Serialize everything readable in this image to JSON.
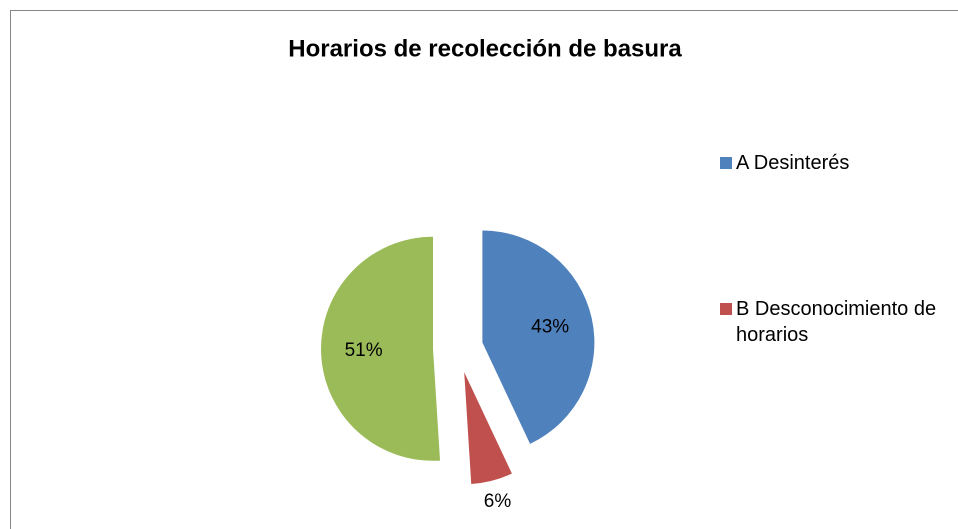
{
  "chart_data": {
    "type": "pie",
    "title": "Horarios de recolección de basura",
    "categories": [
      "A Desinterés",
      "B Desconocimiento de horarios",
      null
    ],
    "values": [
      43,
      6,
      51
    ],
    "value_labels": [
      "43%",
      "6%",
      "51%"
    ],
    "colors": [
      "#4f81bd",
      "#c0504d",
      "#9bbb59"
    ],
    "legend": "right"
  }
}
